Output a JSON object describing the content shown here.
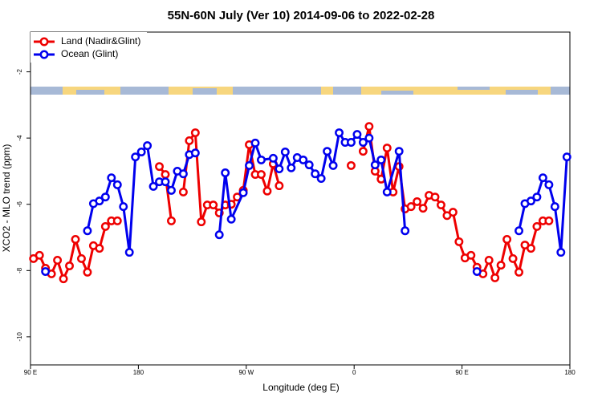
{
  "chart_data": {
    "type": "line",
    "title": "55N-60N July (Ver 10)   2014-09-06 to 2022-02-28",
    "x_label": "Longitude (deg E)",
    "y_label": "XCO2 - MLO trend (ppm)",
    "xlim": [
      90,
      540
    ],
    "xticks": [
      {
        "value": 90,
        "label": "90 E"
      },
      180,
      {
        "value": 270,
        "label": "90 W"
      },
      {
        "value": 360,
        "label": "0"
      },
      {
        "value": 450,
        "label": "90 E"
      },
      {
        "value": 540,
        "label": "180"
      }
    ],
    "ylim": [
      -10.85,
      -0.8
    ],
    "yticks": [
      -2,
      -4,
      -6,
      -8,
      -10
    ],
    "legend": "top-left",
    "series": [
      {
        "name": "Land (Nadir&Glint)",
        "color": "#ee0000",
        "x": [
          92.5,
          97.5,
          102.5,
          107.5,
          112.5,
          117.5,
          122.5,
          127.5,
          132.5,
          137.5,
          142.5,
          147.5,
          152.5,
          157.5,
          162.5,
          167.5,
          197.5,
          202.5,
          207.5,
          212.5,
          217.5,
          222.5,
          227.5,
          232.5,
          237.5,
          242.5,
          247.5,
          252.5,
          257.5,
          262.5,
          267.5,
          272.5,
          277.5,
          282.5,
          287.5,
          292.5,
          297.5,
          302.5,
          357.5,
          362.5,
          367.5,
          372.5,
          377.5,
          382.5,
          387.5,
          392.5,
          397.5,
          402.5,
          407.5,
          412.5,
          417.5,
          422.5,
          427.5,
          432.5,
          437.5,
          442.5,
          447.5,
          452.5,
          457.5,
          462.5,
          467.5,
          472.5,
          477.5,
          482.5,
          487.5,
          492.5,
          497.5,
          502.5,
          507.5,
          512.5,
          517.5,
          522.5
        ],
        "values": [
          -7.64,
          -7.54,
          -7.93,
          -8.1,
          -7.69,
          -8.25,
          -7.86,
          -7.06,
          -7.64,
          -8.05,
          -7.25,
          -7.33,
          -6.67,
          -6.5,
          -6.5,
          null,
          -4.86,
          -5.1,
          -6.5,
          null,
          -5.63,
          -4.08,
          -3.84,
          -6.53,
          -6.02,
          -6.02,
          -6.26,
          -6.02,
          -6.0,
          -5.78,
          -5.58,
          -4.2,
          -5.1,
          -5.1,
          -5.6,
          -4.78,
          -5.44,
          null,
          -4.83,
          null,
          -4.4,
          -3.65,
          -5.0,
          -5.24,
          -4.3,
          -5.63,
          -4.86,
          -6.14,
          -6.07,
          -5.92,
          -6.12,
          -5.73,
          -5.78,
          -6.02,
          -6.34,
          -6.24,
          -7.13,
          -7.62,
          -7.54,
          -7.9,
          -8.1,
          -7.69,
          -8.22,
          -7.84,
          -7.06,
          -7.64,
          -8.05,
          -7.23,
          -7.33,
          -6.67,
          -6.5,
          -6.5
        ]
      },
      {
        "name": "Ocean (Glint)",
        "color": "#0000ee",
        "x": [
          102.5,
          107.5,
          137.5,
          142.5,
          147.5,
          152.5,
          157.5,
          162.5,
          167.5,
          172.5,
          177.5,
          182.5,
          187.5,
          192.5,
          197.5,
          202.5,
          207.5,
          212.5,
          217.5,
          222.5,
          227.5,
          232.5,
          247.5,
          252.5,
          257.5,
          267.5,
          272.5,
          277.5,
          282.5,
          292.5,
          297.5,
          302.5,
          307.5,
          312.5,
          317.5,
          322.5,
          327.5,
          332.5,
          337.5,
          342.5,
          347.5,
          352.5,
          357.5,
          362.5,
          367.5,
          372.5,
          377.5,
          382.5,
          387.5,
          397.5,
          402.5,
          407.5,
          462.5,
          467.5,
          497.5,
          502.5,
          507.5,
          512.5,
          517.5,
          522.5,
          527.5,
          532.5,
          537.5
        ],
        "values": [
          -8.03,
          null,
          -6.8,
          -5.98,
          -5.9,
          -5.78,
          -5.2,
          -5.41,
          -6.07,
          -7.45,
          -4.57,
          -4.42,
          -4.23,
          -5.46,
          -5.32,
          -5.32,
          -5.58,
          -5.0,
          -5.08,
          -4.5,
          -4.45,
          null,
          -6.92,
          -5.05,
          -6.45,
          -5.65,
          -4.83,
          -4.15,
          -4.66,
          -4.61,
          -4.93,
          -4.42,
          -4.9,
          -4.59,
          -4.66,
          -4.81,
          -5.08,
          -5.22,
          -4.4,
          -4.83,
          -3.84,
          -4.13,
          -4.13,
          -3.89,
          -4.13,
          -4.0,
          -4.81,
          -4.66,
          -5.63,
          -4.4,
          -6.8,
          null,
          -8.03,
          null,
          -6.8,
          -5.98,
          -5.9,
          -5.78,
          -5.2,
          -5.41,
          -6.07,
          -7.45,
          -4.57
        ]
      }
    ]
  }
}
